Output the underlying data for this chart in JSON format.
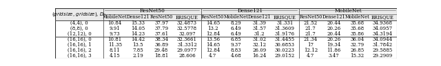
{
  "col_group_headers": [
    "ResNet50",
    "Dense121",
    "MobileNet"
  ],
  "sub_headers": [
    "MobileNet",
    "Dense121",
    "ResNet50",
    "BRISQUE",
    "ResNet50",
    "MobileNet",
    "Dense121",
    "BRISQUE",
    "ResNet50",
    "Dense121",
    "MobileNet",
    "BRISQUE"
  ],
  "row_label_header": "(gridsize, gridsize), D_0",
  "rows": [
    [
      "(4,4), 0",
      "10.84",
      "15.33",
      "37.97",
      "32.4873",
      "14.65",
      "8.29",
      "31.39",
      "31.331",
      "21.52",
      "20.44",
      "35.68",
      "34.9368"
    ],
    [
      "(8,8), 0",
      "9.91",
      "14.05",
      "37.79",
      "32.5778",
      "13.2",
      "6.49",
      "31.57",
      "31.3609",
      "21.7",
      "20.26",
      "35.68",
      "34.0957"
    ],
    [
      "(12,12), 0",
      "9.73",
      "14.23",
      "37.61",
      "32.097",
      "12.84",
      "6.49",
      "31.2",
      "31.9176",
      "21.7",
      "20.44",
      "35.86",
      "34.3194"
    ],
    [
      "(16,16), 0",
      "10.81",
      "14.42",
      "38.34",
      "32.3661",
      "13.56",
      "6.85",
      "31.02",
      "31.4455",
      "21.34",
      "20.26",
      "36.04",
      "34.0944"
    ],
    [
      "(16,16), 1",
      "11.35",
      "13.5",
      "36.89",
      "31.3312",
      "14.65",
      "9.37",
      "32.12",
      "30.6853",
      "17",
      "19.34",
      "32.79",
      "31.7842"
    ],
    [
      "(16,16), 2",
      "8.11",
      "7.85",
      "29.48",
      "29.0977",
      "12.84",
      "8.83",
      "26.09",
      "30.0223",
      "12.12",
      "11.86",
      "26.85",
      "29.5885"
    ],
    [
      "(16,16), 3",
      "4.15",
      "2.19",
      "18.81",
      "28.606",
      "4.7",
      "4.68",
      "16.24",
      "29.0152",
      "4.7",
      "3.47",
      "15.32",
      "29.2909"
    ]
  ],
  "separator_after_row": 2,
  "font_size": 5.0,
  "header_font_size": 5.3,
  "col_widths_rel": [
    1.62,
    0.78,
    0.78,
    0.78,
    0.95,
    0.78,
    0.78,
    0.78,
    0.95,
    0.78,
    0.78,
    0.78,
    0.95
  ]
}
